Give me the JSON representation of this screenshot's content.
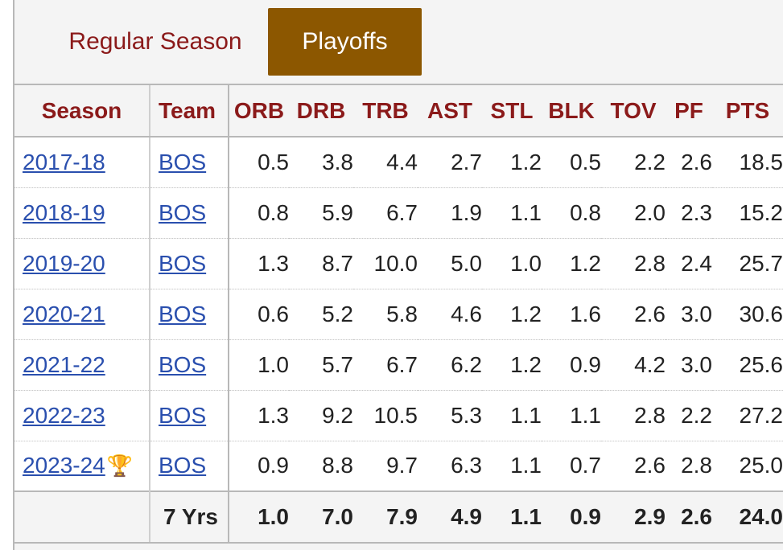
{
  "tabs": {
    "regular": "Regular Season",
    "playoffs": "Playoffs",
    "active": "playoffs"
  },
  "table": {
    "headers": {
      "season": "Season",
      "team": "Team",
      "orb": "ORB",
      "drb": "DRB",
      "trb": "TRB",
      "ast": "AST",
      "stl": "STL",
      "blk": "BLK",
      "tov": "TOV",
      "pf": "PF",
      "pts": "PTS"
    },
    "rows": [
      {
        "season": "2017-18",
        "team": "BOS",
        "orb": "0.5",
        "drb": "3.8",
        "trb": "4.4",
        "ast": "2.7",
        "stl": "1.2",
        "blk": "0.5",
        "tov": "2.2",
        "pf": "2.6",
        "pts": "18.5",
        "trophy": ""
      },
      {
        "season": "2018-19",
        "team": "BOS",
        "orb": "0.8",
        "drb": "5.9",
        "trb": "6.7",
        "ast": "1.9",
        "stl": "1.1",
        "blk": "0.8",
        "tov": "2.0",
        "pf": "2.3",
        "pts": "15.2",
        "trophy": ""
      },
      {
        "season": "2019-20",
        "team": "BOS",
        "orb": "1.3",
        "drb": "8.7",
        "trb": "10.0",
        "ast": "5.0",
        "stl": "1.0",
        "blk": "1.2",
        "tov": "2.8",
        "pf": "2.4",
        "pts": "25.7",
        "trophy": ""
      },
      {
        "season": "2020-21",
        "team": "BOS",
        "orb": "0.6",
        "drb": "5.2",
        "trb": "5.8",
        "ast": "4.6",
        "stl": "1.2",
        "blk": "1.6",
        "tov": "2.6",
        "pf": "3.0",
        "pts": "30.6",
        "trophy": ""
      },
      {
        "season": "2021-22",
        "team": "BOS",
        "orb": "1.0",
        "drb": "5.7",
        "trb": "6.7",
        "ast": "6.2",
        "stl": "1.2",
        "blk": "0.9",
        "tov": "4.2",
        "pf": "3.0",
        "pts": "25.6",
        "trophy": ""
      },
      {
        "season": "2022-23",
        "team": "BOS",
        "orb": "1.3",
        "drb": "9.2",
        "trb": "10.5",
        "ast": "5.3",
        "stl": "1.1",
        "blk": "1.1",
        "tov": "2.8",
        "pf": "2.2",
        "pts": "27.2",
        "trophy": ""
      },
      {
        "season": "2023-24",
        "team": "BOS",
        "orb": "0.9",
        "drb": "8.8",
        "trb": "9.7",
        "ast": "6.3",
        "stl": "1.1",
        "blk": "0.7",
        "tov": "2.6",
        "pf": "2.8",
        "pts": "25.0",
        "trophy": "🏆"
      }
    ],
    "footer": {
      "label": "7 Yrs",
      "orb": "1.0",
      "drb": "7.0",
      "trb": "7.9",
      "ast": "4.9",
      "stl": "1.1",
      "blk": "0.9",
      "tov": "2.9",
      "pf": "2.6",
      "pts": "24.0"
    }
  },
  "icons": {
    "champion": "trophy-icon"
  },
  "colors": {
    "header_text": "#8b1a1a",
    "active_tab": "#8c5700",
    "link": "#2a4fae"
  }
}
